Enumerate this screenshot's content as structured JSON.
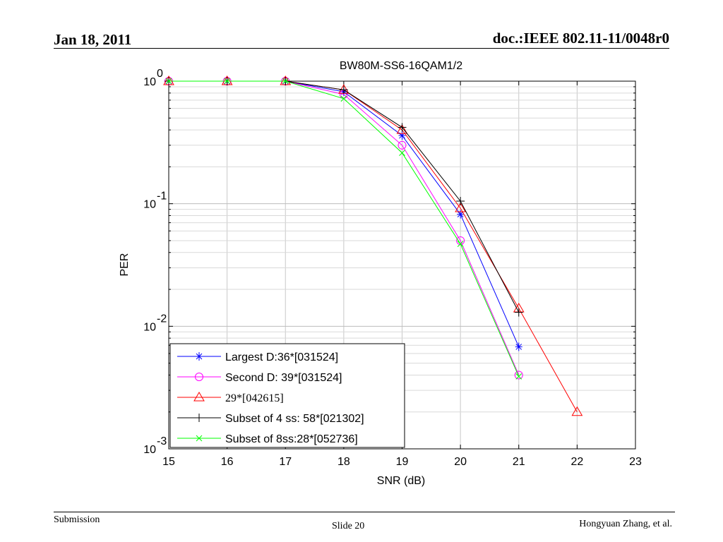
{
  "header": {
    "date": "Jan 18, 2011",
    "doc_id": "doc.:IEEE 802.11-11/0048r0"
  },
  "footer": {
    "left": "Submission",
    "center": "Slide 20",
    "right": "Hongyuan Zhang, et al."
  },
  "chart_data": {
    "type": "line",
    "title": "BW80M-SS6-16QAM1/2",
    "xlabel": "SNR (dB)",
    "ylabel": "PER",
    "xlim": [
      15,
      23
    ],
    "ylim": [
      0.001,
      1
    ],
    "yscale": "log",
    "grid": true,
    "legend_position": "bottom-left",
    "x_ticks": [
      "15",
      "16",
      "17",
      "18",
      "19",
      "20",
      "21",
      "22",
      "23"
    ],
    "y_ticks": [
      {
        "base": "10",
        "exp": "0",
        "value": 1
      },
      {
        "base": "10",
        "exp": "-1",
        "value": 0.1
      },
      {
        "base": "10",
        "exp": "-2",
        "value": 0.01
      },
      {
        "base": "10",
        "exp": "-3",
        "value": 0.001
      }
    ],
    "series": [
      {
        "name": "Largest D:36*[031524]",
        "color": "#0000ff",
        "marker": "star",
        "x": [
          15,
          16,
          17,
          18,
          19,
          20,
          21
        ],
        "y": [
          1.0,
          1.0,
          1.0,
          0.82,
          0.36,
          0.082,
          0.0068
        ]
      },
      {
        "name": "Second D: 39*[031524]",
        "color": "#ff00ff",
        "marker": "circle",
        "x": [
          15,
          16,
          17,
          18,
          19,
          20,
          21
        ],
        "y": [
          1.0,
          1.0,
          1.0,
          0.78,
          0.3,
          0.05,
          0.004
        ]
      },
      {
        "name": " 29*[042615]",
        "color": "#ff0000",
        "marker": "triangle",
        "x": [
          15,
          16,
          17,
          18,
          19,
          20,
          21,
          22
        ],
        "y": [
          1.0,
          1.0,
          1.0,
          0.85,
          0.4,
          0.092,
          0.014,
          0.002
        ]
      },
      {
        "name": "Subset of 4 ss: 58*[021302]",
        "color": "#000000",
        "marker": "plus",
        "x": [
          15,
          16,
          17,
          18,
          19,
          20,
          21
        ],
        "y": [
          1.0,
          1.0,
          1.0,
          0.85,
          0.42,
          0.105,
          0.013
        ]
      },
      {
        "name": "Subset of 8ss:28*[052736]",
        "color": "#00ff00",
        "marker": "x",
        "x": [
          15,
          16,
          17,
          18,
          19,
          20,
          21
        ],
        "y": [
          1.0,
          1.0,
          1.0,
          0.72,
          0.26,
          0.047,
          0.0039
        ]
      }
    ]
  }
}
